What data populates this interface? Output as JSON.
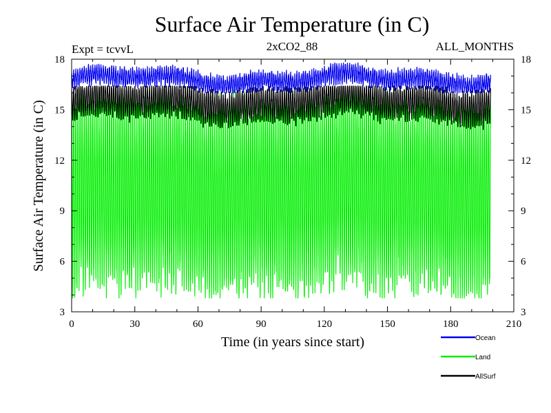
{
  "chart_data": {
    "type": "line",
    "title": "Surface Air Temperature (in C)",
    "subtitle_left": "Expt = tcvvL",
    "subtitle_center": "2xCO2_88",
    "subtitle_right": "ALL_MONTHS",
    "xlabel": "Time (in years since start)",
    "ylabel": "Surface Air Temperature (in C)",
    "xlim": [
      0,
      210
    ],
    "ylim": [
      3,
      18
    ],
    "x_ticks": [
      "0",
      "30",
      "60",
      "90",
      "120",
      "150",
      "180",
      "210"
    ],
    "y_ticks": [
      "3",
      "6",
      "9",
      "12",
      "15",
      "18"
    ],
    "grid": false,
    "legend_position": "bottom-right",
    "x_range_years": [
      0,
      199
    ],
    "series": [
      {
        "name": "Ocean",
        "color": "#0000ee",
        "annual_min": 16.0,
        "annual_max": 17.8,
        "mean": 16.8
      },
      {
        "name": "Land",
        "color": "#00ee00",
        "annual_min": 3.8,
        "annual_max": 16.2,
        "mean": 10.0
      },
      {
        "name": "AllSurf",
        "color": "#000000",
        "annual_min": 13.8,
        "annual_max": 16.4,
        "mean": 15.5
      }
    ]
  }
}
